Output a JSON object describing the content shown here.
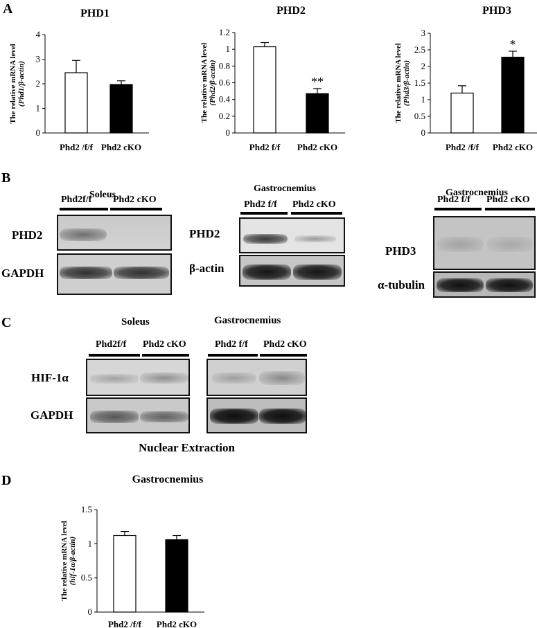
{
  "panels": {
    "A": "A",
    "B": "B",
    "C": "C",
    "D": "D"
  },
  "chart_data": [
    {
      "type": "bar",
      "title": "PHD1",
      "ylabel_line1": "The relative mRNA level",
      "ylabel_line2": "(Phd1/β-actin)",
      "categories": [
        "Phd2 /f/f",
        "Phd2 cKO"
      ],
      "values": [
        2.45,
        1.97
      ],
      "errors": [
        0.5,
        0.15
      ],
      "fill": [
        "#ffffff",
        "#000000"
      ],
      "ylim": [
        0,
        4
      ],
      "yticks": [
        "0",
        "1",
        "2",
        "3",
        "4"
      ],
      "sig": [
        "",
        ""
      ]
    },
    {
      "type": "bar",
      "title": "PHD2",
      "ylabel_line1": "The relative mRNA level",
      "ylabel_line2": "(Phd2/β-actin)",
      "categories": [
        "Phd2 f/f",
        "Phd2 cKO"
      ],
      "values": [
        1.03,
        0.47
      ],
      "errors": [
        0.05,
        0.06
      ],
      "fill": [
        "#ffffff",
        "#000000"
      ],
      "ylim": [
        0,
        1.2
      ],
      "yticks": [
        "0",
        "0.2",
        "0.4",
        "0.6",
        "0.8",
        "1",
        "1.2"
      ],
      "sig": [
        "",
        "**"
      ]
    },
    {
      "type": "bar",
      "title": "PHD3",
      "ylabel_line1": "The relative mRNA level",
      "ylabel_line2": "(Phd3/β-actin)",
      "categories": [
        "Phd2 /f/f",
        "Phd2 cKO"
      ],
      "values": [
        1.2,
        2.28
      ],
      "errors": [
        0.22,
        0.18
      ],
      "fill": [
        "#ffffff",
        "#000000"
      ],
      "ylim": [
        0,
        3
      ],
      "yticks": [
        "0",
        "0.5",
        "1",
        "1.5",
        "2",
        "2.5",
        "3"
      ],
      "sig": [
        "",
        "*"
      ]
    },
    {
      "type": "bar",
      "title": "Gastrocnemius",
      "ylabel_line1": "The relative mRNA level",
      "ylabel_line2": "(hif-1α/β-actin)",
      "categories": [
        "Phd2 /f/f",
        "Phd2 cKO"
      ],
      "values": [
        1.12,
        1.06
      ],
      "errors": [
        0.06,
        0.06
      ],
      "fill": [
        "#ffffff",
        "#000000"
      ],
      "ylim": [
        0,
        1.5
      ],
      "yticks": [
        "0",
        "0.5",
        "1",
        "1.5"
      ],
      "sig": [
        "",
        ""
      ]
    }
  ],
  "blotB": {
    "soleus": {
      "title": "Soleus",
      "lanes": [
        "Phd2f/f",
        "Phd2 cKO"
      ],
      "rows": [
        "PHD2",
        "GAPDH"
      ]
    },
    "gastro1": {
      "title": "Gastrocnemius",
      "lanes": [
        "Phd2 f/f",
        "Phd2 cKO"
      ],
      "rows": [
        "PHD2",
        "β-actin"
      ]
    },
    "gastro2": {
      "title": "Gastrocnemius",
      "lanes": [
        "Phd2 f/f",
        "Phd2 cKO"
      ],
      "rows": [
        "PHD3",
        "α-tubulin"
      ]
    }
  },
  "blotC": {
    "soleus": {
      "title": "Soleus",
      "lanes": [
        "Phd2f/f",
        "Phd2 cKO"
      ]
    },
    "gastro": {
      "title": "Gastrocnemius",
      "lanes": [
        "Phd2 f/f",
        "Phd2 cKO"
      ]
    },
    "rows": [
      "HIF-1α",
      "GAPDH"
    ],
    "caption": "Nuclear Extraction"
  }
}
